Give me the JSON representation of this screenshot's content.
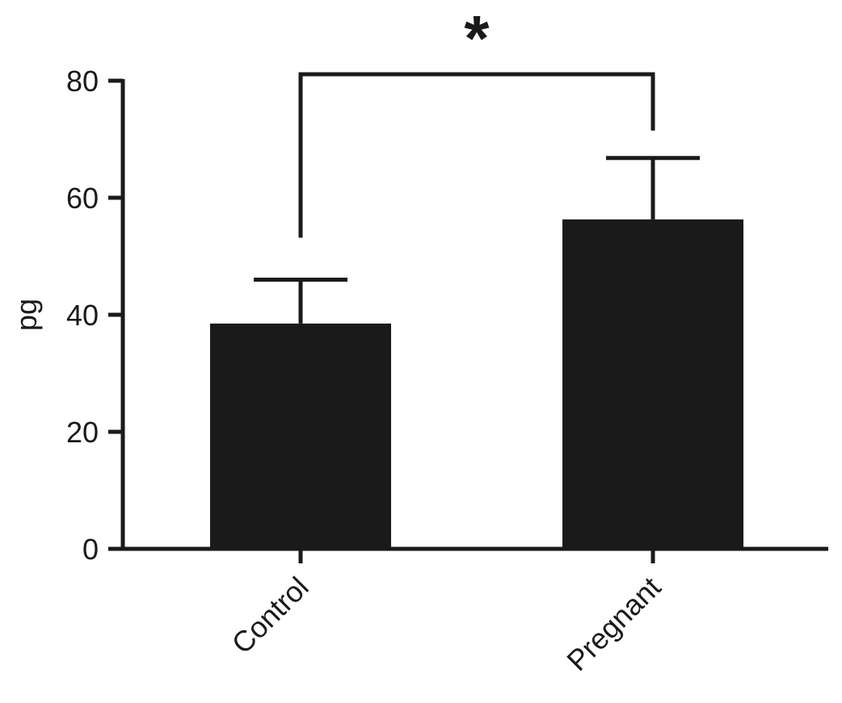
{
  "chart_data": {
    "type": "bar",
    "categories": [
      "Control",
      "Pregnant"
    ],
    "values": [
      38.5,
      56.3
    ],
    "error_upper": [
      46.0,
      66.8
    ],
    "ylabel": "pg",
    "xlabel": "",
    "ylim": [
      0,
      80
    ],
    "yticks": [
      0,
      20,
      40,
      60,
      80
    ],
    "ytick_labels": [
      "0",
      "20",
      "40",
      "60",
      "80"
    ],
    "significance": {
      "between": [
        "Control",
        "Pregnant"
      ],
      "label": "*"
    },
    "bar_color": "#1a1a1a",
    "axis_color": "#1a1a1a",
    "grid": false
  }
}
